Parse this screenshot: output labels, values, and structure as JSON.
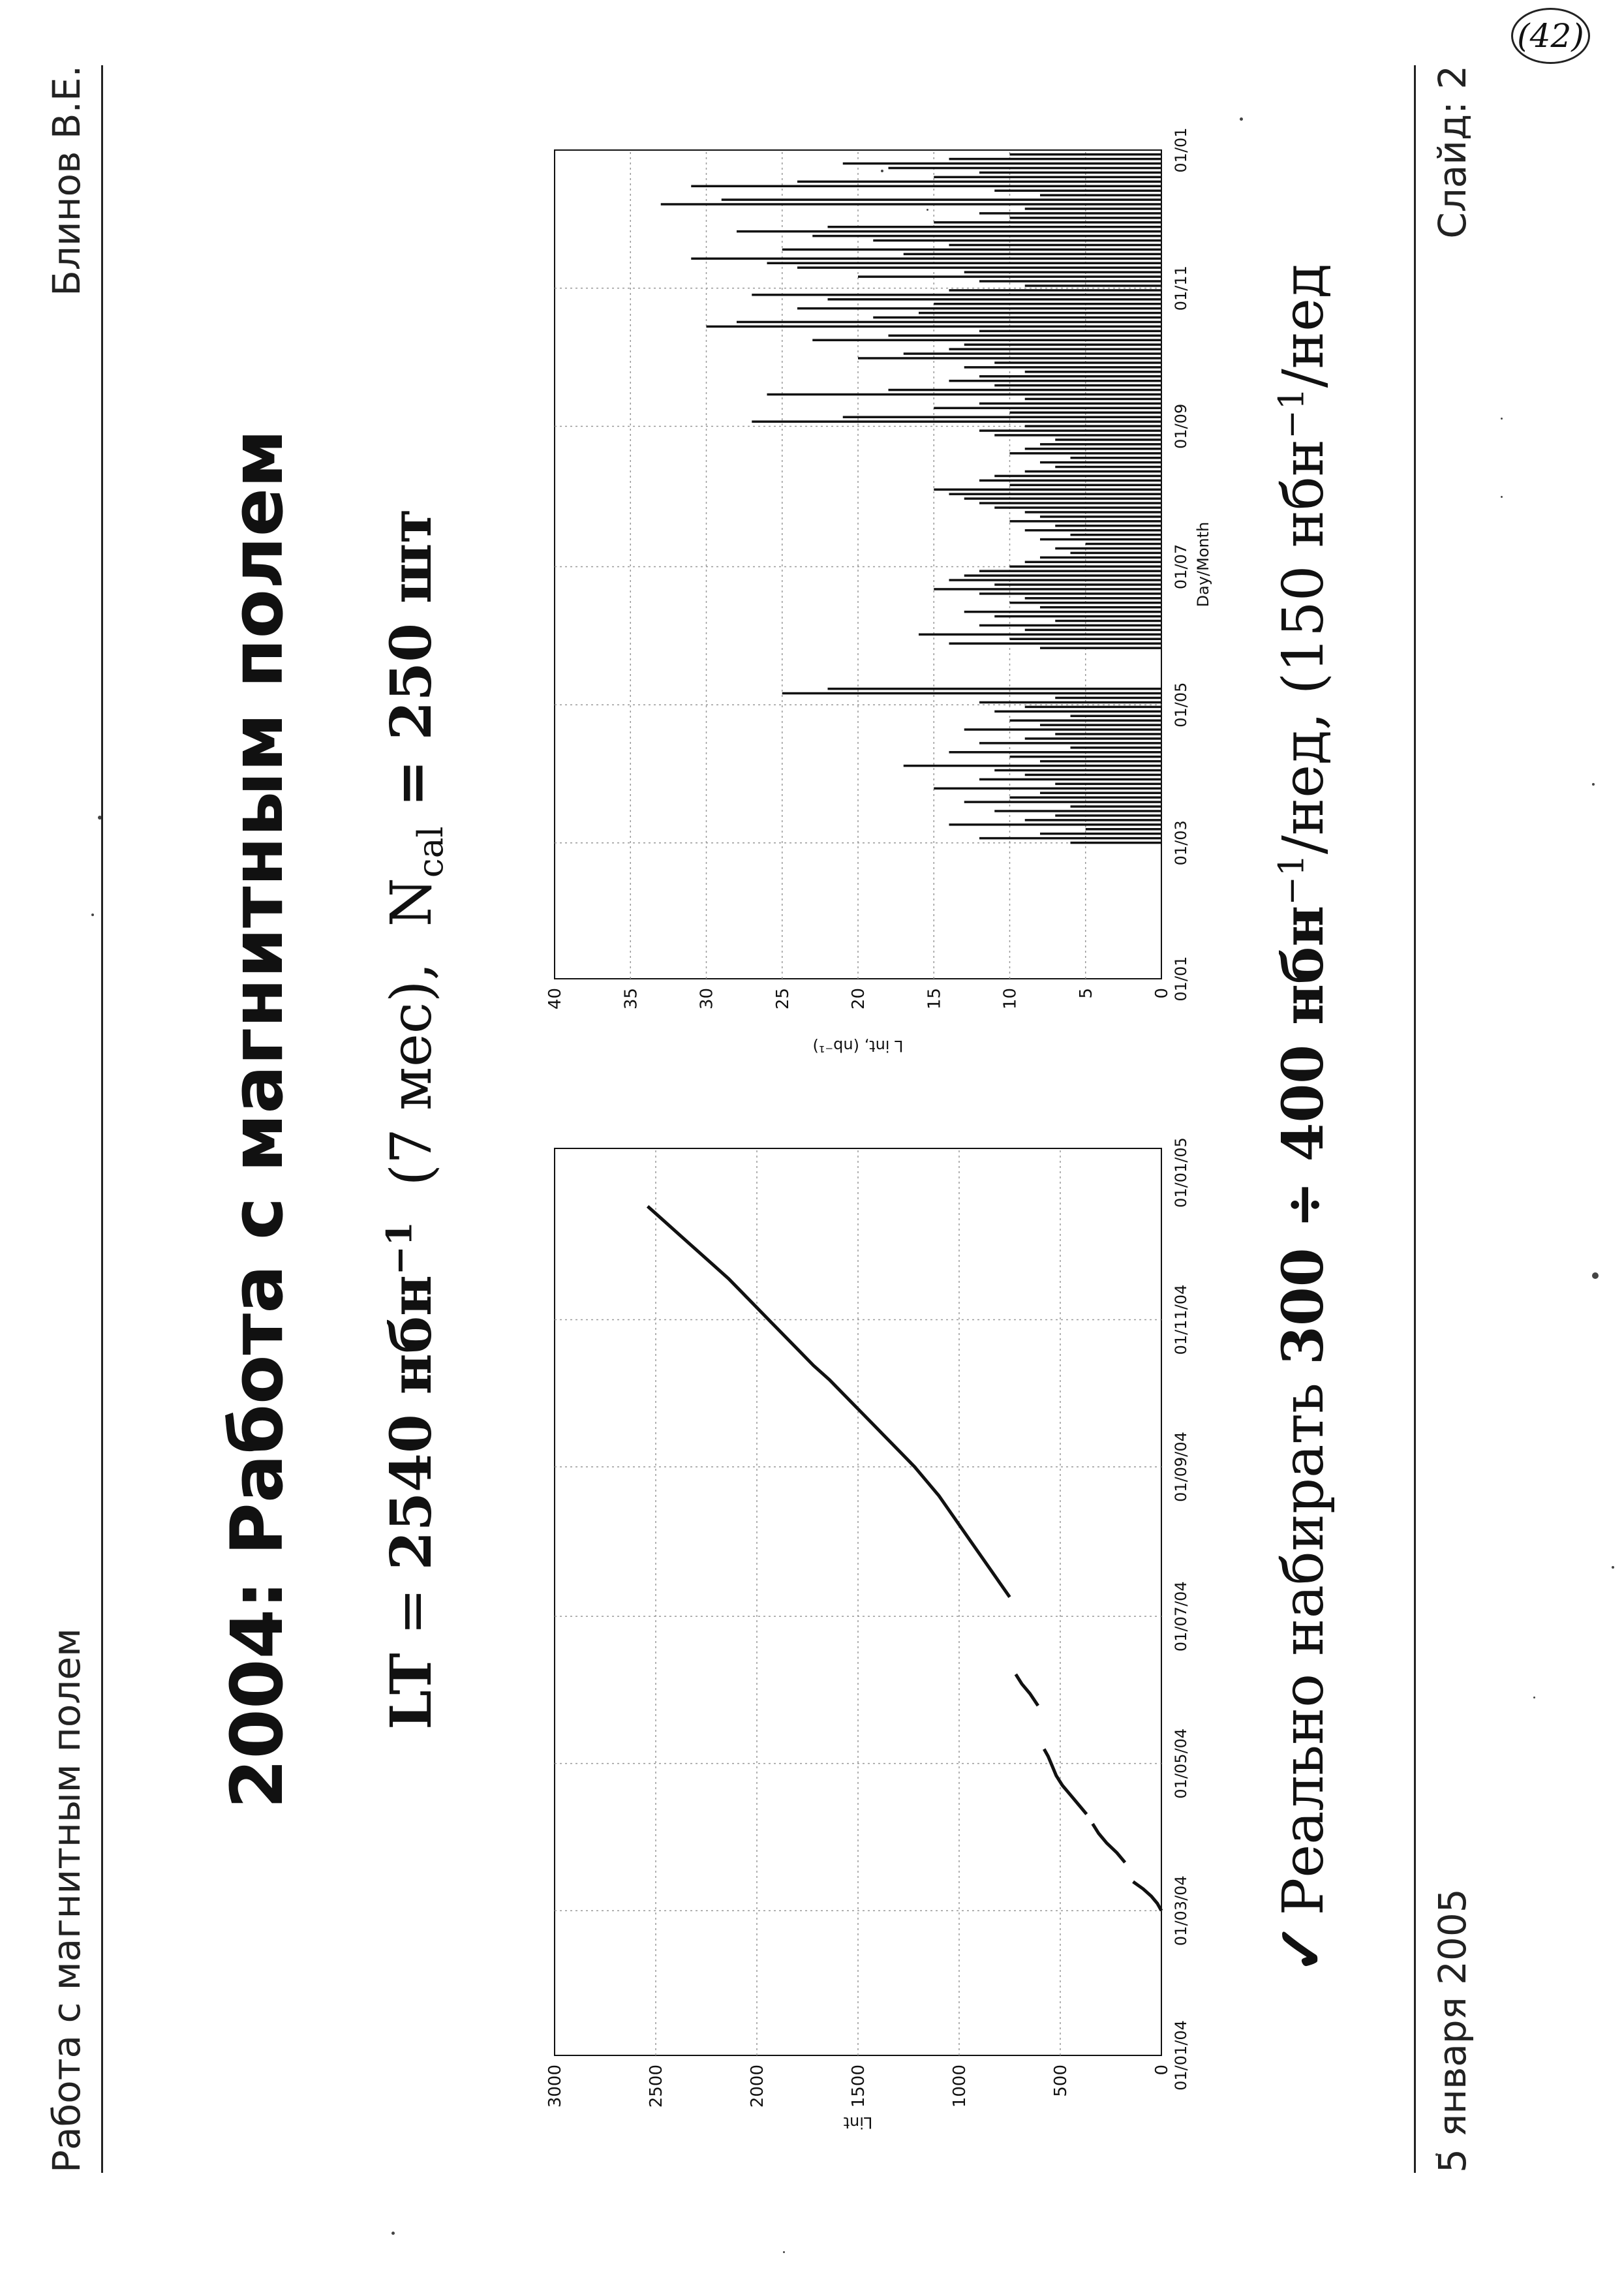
{
  "page_number": "(42)",
  "slide": {
    "header_left": "Работа с магнитным полем",
    "header_right": "Блинов В.Е.",
    "footer_left": "5 января 2005",
    "footer_right": "Слайд: 2",
    "title": "2004: Работа с магнитным полем",
    "formula": {
      "lt_label": "LT",
      "eq": " = ",
      "lt_value": "2540 нбн",
      "lt_exp": "−1",
      "period": "  (7 мес),  ",
      "ncal_label": "N",
      "ncal_sub": "cal",
      "ncal_value": " = 250 шт"
    },
    "bottom": {
      "check": "✓",
      "t1": "Реально набирать ",
      "t2": "300 ÷ 400 нбн",
      "exp1": "−1",
      "t3": "/нед, (150 нбн",
      "exp2": "−1",
      "t4": "/нед"
    }
  },
  "chart_data": [
    {
      "type": "line",
      "ylabel": "Lint",
      "xlabel": "",
      "ylim": [
        0,
        3000
      ],
      "yticks": [
        "0",
        "500",
        "1000",
        "1500",
        "2000",
        "2500",
        "3000"
      ],
      "xticks": [
        "01/01/04",
        "01/03/04",
        "01/05/04",
        "01/07/04",
        "01/09/04",
        "01/11/04",
        "01/01/05"
      ],
      "grid": true,
      "series": [
        {
          "color": "#111111",
          "segments": [
            [
              [
                60,
                0
              ],
              [
                63,
                20
              ],
              [
                66,
                50
              ],
              [
                69,
                90
              ],
              [
                72,
                140
              ]
            ],
            [
              [
                80,
                180
              ],
              [
                84,
                220
              ],
              [
                88,
                270
              ],
              [
                92,
                310
              ],
              [
                96,
                340
              ]
            ],
            [
              [
                100,
                370
              ],
              [
                104,
                410
              ],
              [
                108,
                450
              ],
              [
                112,
                490
              ],
              [
                116,
                520
              ],
              [
                120,
                540
              ],
              [
                124,
                560
              ],
              [
                127,
                580
              ]
            ],
            [
              [
                145,
                610
              ],
              [
                150,
                650
              ],
              [
                154,
                690
              ],
              [
                158,
                720
              ]
            ],
            [
              [
                190,
                750
              ],
              [
                196,
                800
              ],
              [
                202,
                850
              ],
              [
                208,
                900
              ],
              [
                214,
                950
              ],
              [
                220,
                1000
              ],
              [
                226,
                1050
              ],
              [
                232,
                1100
              ],
              [
                238,
                1160
              ],
              [
                244,
                1220
              ],
              [
                250,
                1290
              ],
              [
                256,
                1360
              ],
              [
                262,
                1430
              ],
              [
                268,
                1500
              ],
              [
                274,
                1570
              ],
              [
                280,
                1640
              ],
              [
                286,
                1720
              ],
              [
                292,
                1790
              ],
              [
                298,
                1860
              ],
              [
                304,
                1930
              ],
              [
                310,
                2000
              ],
              [
                316,
                2070
              ],
              [
                322,
                2140
              ],
              [
                328,
                2220
              ],
              [
                334,
                2300
              ],
              [
                340,
                2380
              ],
              [
                346,
                2460
              ],
              [
                352,
                2540
              ]
            ]
          ]
        }
      ]
    },
    {
      "type": "bar",
      "ylabel": "L int, (nb⁻¹)",
      "xlabel": "Day/Month",
      "ylim": [
        0,
        40
      ],
      "yticks": [
        "0",
        "5",
        "10",
        "15",
        "20",
        "25",
        "30",
        "35",
        "40"
      ],
      "xticks": [
        "01/01",
        "01/03",
        "01/05",
        "01/07",
        "01/09",
        "01/11",
        "01/01"
      ],
      "grid": true,
      "days": [
        60,
        62,
        64,
        66,
        68,
        70,
        72,
        74,
        76,
        78,
        80,
        82,
        84,
        86,
        88,
        90,
        92,
        94,
        96,
        98,
        100,
        102,
        104,
        106,
        108,
        110,
        112,
        114,
        116,
        118,
        120,
        122,
        124,
        126,
        128,
        146,
        148,
        150,
        152,
        154,
        156,
        158,
        160,
        162,
        164,
        166,
        168,
        170,
        172,
        174,
        176,
        178,
        180,
        182,
        184,
        186,
        188,
        190,
        192,
        194,
        196,
        198,
        200,
        202,
        204,
        206,
        208,
        210,
        212,
        214,
        216,
        218,
        220,
        222,
        224,
        226,
        228,
        230,
        232,
        234,
        236,
        238,
        240,
        242,
        244,
        246,
        248,
        250,
        252,
        254,
        256,
        258,
        260,
        262,
        264,
        266,
        268,
        270,
        272,
        274,
        276,
        278,
        280,
        282,
        284,
        286,
        288,
        290,
        292,
        294,
        296,
        298,
        300,
        302,
        304,
        306,
        308,
        310,
        312,
        314,
        316,
        318,
        320,
        322,
        324,
        326,
        328,
        330,
        332,
        334,
        336,
        338,
        340,
        342,
        344,
        346,
        348,
        350,
        352,
        354,
        356,
        358,
        360,
        362,
        364
      ],
      "values": [
        6,
        12,
        8,
        5,
        14,
        9,
        7,
        11,
        6,
        13,
        10,
        8,
        15,
        7,
        12,
        9,
        11,
        17,
        8,
        10,
        14,
        6,
        12,
        9,
        7,
        13,
        8,
        10,
        6,
        11,
        9,
        12,
        7,
        25,
        22,
        8,
        14,
        10,
        16,
        9,
        12,
        7,
        11,
        13,
        8,
        10,
        9,
        12,
        15,
        11,
        14,
        13,
        12,
        10,
        9,
        8,
        6,
        7,
        5,
        8,
        6,
        9,
        7,
        10,
        8,
        9,
        11,
        12,
        13,
        14,
        15,
        10,
        12,
        11,
        9,
        7,
        8,
        6,
        10,
        9,
        8,
        7,
        11,
        12,
        9,
        27,
        21,
        10,
        15,
        12,
        9,
        26,
        18,
        11,
        14,
        12,
        9,
        13,
        11,
        20,
        17,
        14,
        13,
        23,
        18,
        12,
        30,
        28,
        19,
        16,
        24,
        15,
        22,
        27,
        14,
        9,
        12,
        20,
        13,
        24,
        26,
        31,
        17,
        25,
        14,
        19,
        23,
        28,
        22,
        15,
        10,
        12,
        9,
        33,
        29,
        8,
        11,
        31,
        24,
        15,
        12,
        18,
        21,
        14,
        10
      ]
    }
  ]
}
